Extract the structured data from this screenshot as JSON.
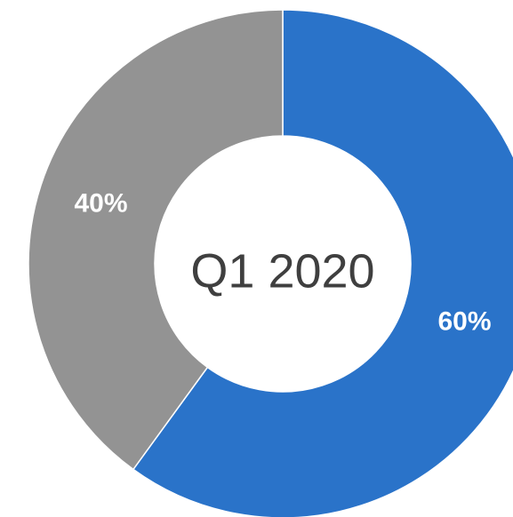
{
  "chart_data": {
    "type": "pie",
    "style": "donut",
    "center_label": "Q1 2020",
    "slices": [
      {
        "value": 60,
        "label": "60%",
        "color": "#2a73c9"
      },
      {
        "value": 40,
        "label": "40%",
        "color": "#939393"
      }
    ],
    "start": "top",
    "direction": "clockwise",
    "legend": "none"
  }
}
